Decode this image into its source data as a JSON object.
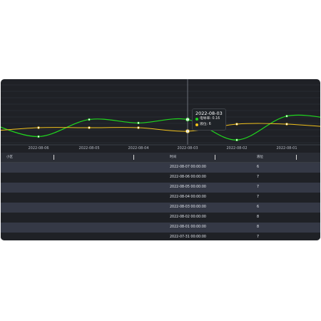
{
  "chart_data": {
    "type": "line",
    "x": [
      "2022-08-07",
      "2022-08-06",
      "2022-08-05",
      "2022-08-04",
      "2022-08-03",
      "2022-08-02",
      "2022-08-01",
      "2022-07-31"
    ],
    "tick_labels": [
      "2022-08-06",
      "2022-08-05",
      "2022-08-04",
      "2022-08-03",
      "2022-08-02",
      "2022-08-01"
    ],
    "series": [
      {
        "name": "电导率",
        "color": "#20d81e",
        "values": [
          0.15,
          0.11,
          0.16,
          0.15,
          0.16,
          0.1,
          0.17,
          0.16
        ]
      },
      {
        "name": "液位",
        "color": "#f2c21b",
        "values": [
          6,
          7,
          7,
          7,
          6,
          8,
          8,
          7
        ]
      }
    ]
  },
  "tooltip": {
    "date": "2022-08-03",
    "line1": "电导率: 0.16",
    "line2": "液位: 6"
  },
  "table": {
    "headers": [
      "小区",
      "",
      "时间",
      "液位"
    ],
    "rows": [
      [
        "",
        "",
        "2022-08-07 00:00:00",
        "6"
      ],
      [
        "",
        "",
        "2022-08-06 00:00:00",
        "7"
      ],
      [
        "",
        "",
        "2022-08-05 00:00:00",
        "7"
      ],
      [
        "",
        "",
        "2022-08-04 00:00:00",
        "7"
      ],
      [
        "",
        "",
        "2022-08-03 00:00:00",
        "6"
      ],
      [
        "",
        "",
        "2022-08-02 00:00:00",
        "8"
      ],
      [
        "",
        "",
        "2022-08-01 00:00:00",
        "8"
      ],
      [
        "",
        "",
        "2022-07-31 00:00:00",
        "7"
      ]
    ]
  },
  "colors": {
    "panel_bg": "#1f2126",
    "green": "#20d81e",
    "yellow": "#f2c21b"
  }
}
